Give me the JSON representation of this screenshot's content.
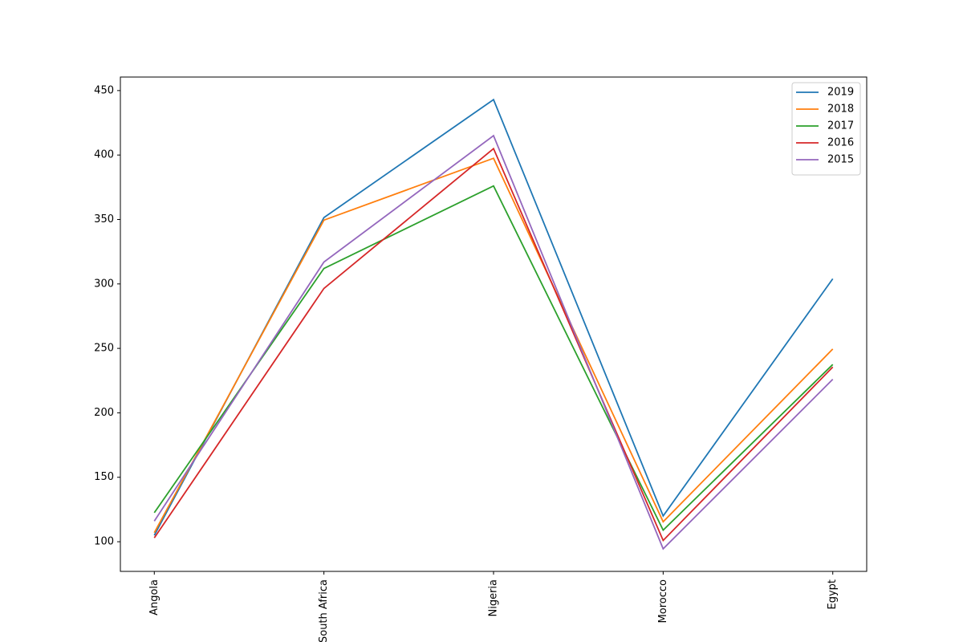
{
  "chart_data": {
    "type": "line",
    "categories": [
      "Angola",
      "South Africa",
      "Nigeria",
      "Morocco",
      "Egypt"
    ],
    "series": [
      {
        "name": "2019",
        "color": "#1f77b4",
        "values": [
          105,
          351.5,
          443,
          120,
          304
        ]
      },
      {
        "name": "2018",
        "color": "#ff7f0e",
        "values": [
          107,
          349.5,
          397.5,
          115.5,
          249.5
        ]
      },
      {
        "name": "2017",
        "color": "#2ca02c",
        "values": [
          122.5,
          312,
          376,
          109,
          237.5
        ]
      },
      {
        "name": "2016",
        "color": "#d62728",
        "values": [
          103,
          296.5,
          405,
          101,
          235.5
        ]
      },
      {
        "name": "2015",
        "color": "#9467bd",
        "values": [
          116,
          317,
          415,
          94.5,
          226
        ]
      }
    ],
    "ylim": [
      77,
      460.5
    ],
    "yticks": [
      100,
      150,
      200,
      250,
      300,
      350,
      400,
      450
    ],
    "legend": "upper right"
  }
}
